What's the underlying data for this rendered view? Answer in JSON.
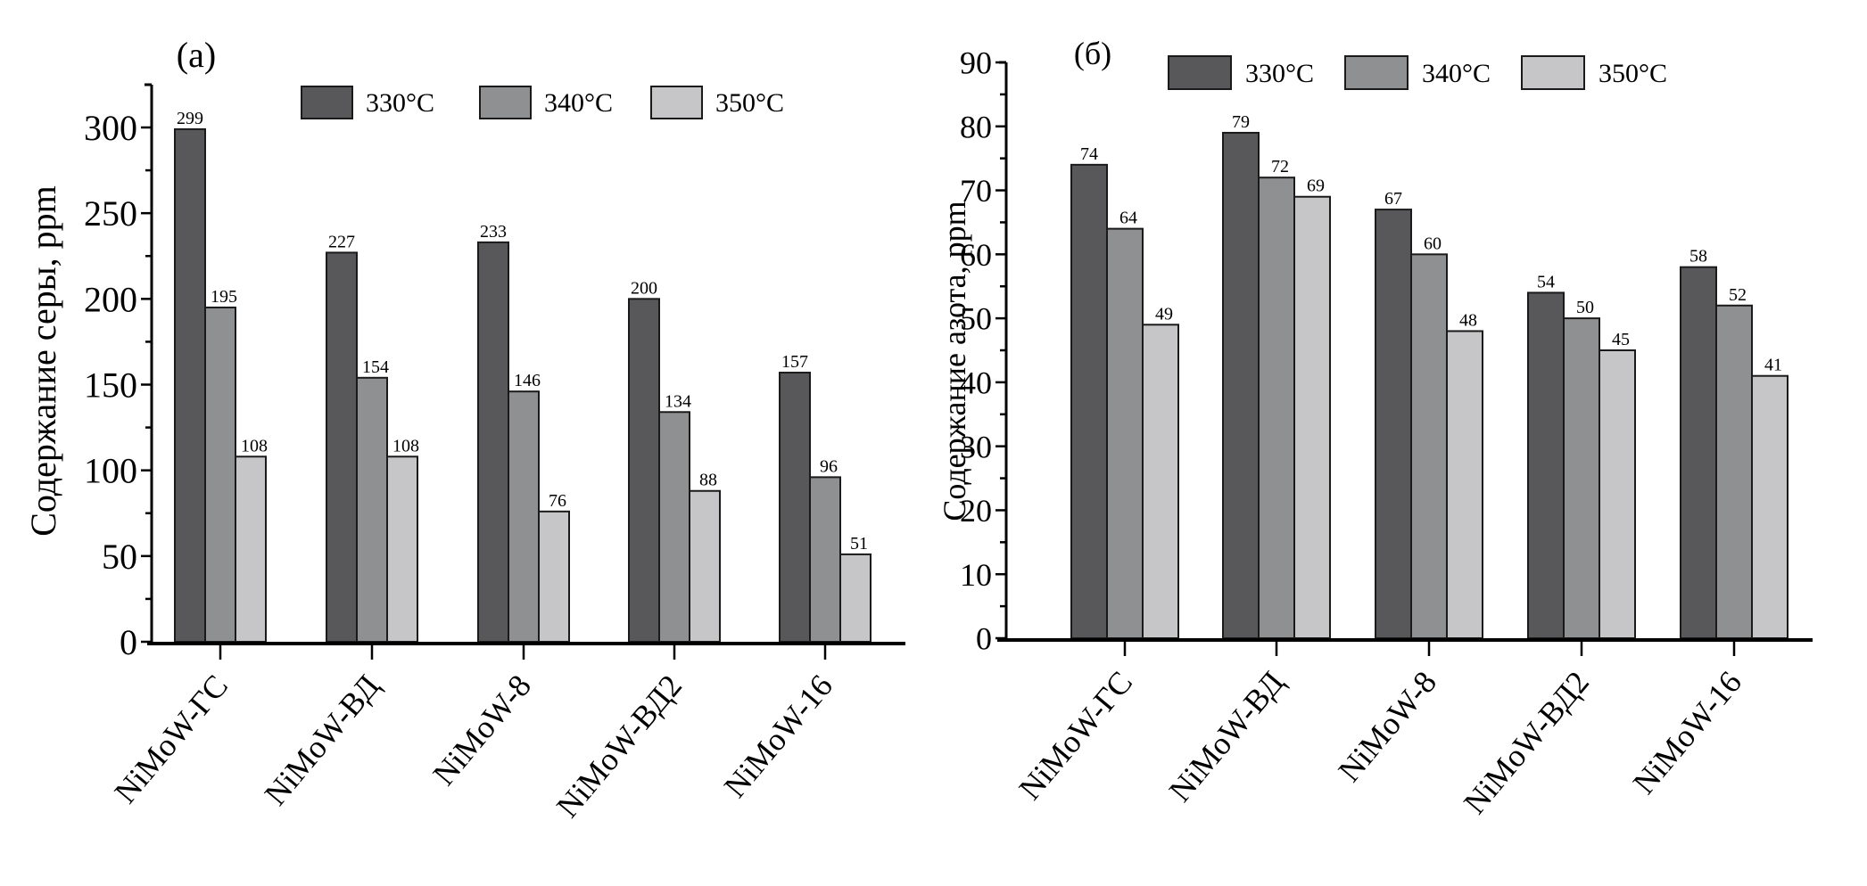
{
  "chart_data": [
    {
      "type": "bar",
      "panel_label": "(a)",
      "title": "",
      "xlabel": "",
      "ylabel": "Содержание серы, ppm",
      "ylim": [
        0,
        325
      ],
      "yticks": [
        0,
        50,
        100,
        150,
        200,
        250,
        300
      ],
      "ytick_labels": [
        "0",
        "50",
        "100",
        "150",
        "200",
        "250",
        "300"
      ],
      "minor_ytick_step": 25,
      "grid": false,
      "legend_position": "top-center",
      "categories": [
        "NiMoW-ГС",
        "NiMoW-ВД",
        "NiMoW-8",
        "NiMoW-ВД2",
        "NiMoW-16"
      ],
      "series": [
        {
          "name": "330°C",
          "color": "#58585a",
          "values": [
            299,
            227,
            233,
            200,
            157
          ]
        },
        {
          "name": "340°C",
          "color": "#8f9092",
          "values": [
            195,
            154,
            146,
            134,
            96
          ]
        },
        {
          "name": "350°C",
          "color": "#c6c6c8",
          "values": [
            108,
            108,
            76,
            88,
            51
          ]
        }
      ]
    },
    {
      "type": "bar",
      "panel_label": "(б)",
      "title": "",
      "xlabel": "",
      "ylabel": "Содержание азота, ppm",
      "ylim": [
        0,
        90
      ],
      "yticks": [
        0,
        10,
        20,
        30,
        40,
        50,
        60,
        70,
        80,
        90
      ],
      "ytick_labels": [
        "0",
        "10",
        "20",
        "30",
        "40",
        "50",
        "60",
        "70",
        "80",
        "90"
      ],
      "minor_ytick_step": 5,
      "grid": false,
      "legend_position": "top-center",
      "categories": [
        "NiMoW-ГС",
        "NiMoW-ВД",
        "NiMoW-8",
        "NiMoW-ВД2",
        "NiMoW-16"
      ],
      "series": [
        {
          "name": "330°C",
          "color": "#58585a",
          "values": [
            74,
            79,
            67,
            54,
            58
          ]
        },
        {
          "name": "340°C",
          "color": "#8f9092",
          "values": [
            64,
            72,
            60,
            50,
            52
          ]
        },
        {
          "name": "350°C",
          "color": "#c6c6c8",
          "values": [
            49,
            69,
            48,
            45,
            41
          ]
        }
      ]
    }
  ]
}
